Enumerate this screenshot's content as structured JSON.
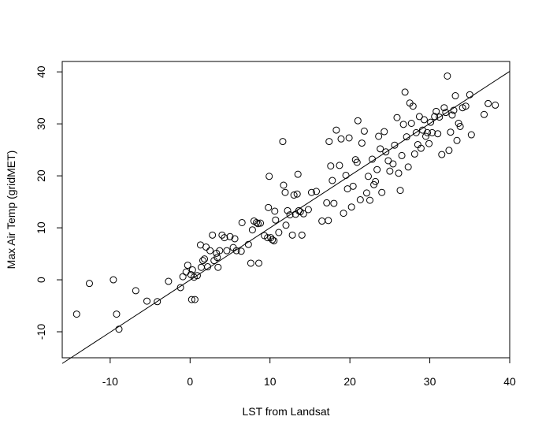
{
  "chart_data": {
    "type": "scatter",
    "title": "",
    "xlabel": "LST from Landsat",
    "ylabel": "Max Air Temp (gridMET)",
    "xlim": [
      -16,
      40
    ],
    "ylim": [
      -15,
      42
    ],
    "xticks": [
      -10,
      0,
      10,
      20,
      30,
      40
    ],
    "yticks": [
      -10,
      0,
      10,
      20,
      30,
      40
    ],
    "grid": false,
    "legend": "none",
    "fit_line": {
      "x": [
        -16,
        40
      ],
      "y": [
        -16.1,
        40.1
      ]
    },
    "points": [
      [
        -14.2,
        -6.6
      ],
      [
        -12.6,
        -0.7
      ],
      [
        -9.6,
        0
      ],
      [
        -9.2,
        -6.6
      ],
      [
        -8.9,
        -9.5
      ],
      [
        -6.8,
        -2.1
      ],
      [
        -5.4,
        -4.1
      ],
      [
        -4.1,
        -4.2
      ],
      [
        -2.7,
        -0.3
      ],
      [
        -1.2,
        -1.5
      ],
      [
        -0.9,
        0.6
      ],
      [
        -0.5,
        1.5
      ],
      [
        -0.3,
        2.8
      ],
      [
        0.1,
        1.0
      ],
      [
        0.2,
        -3.8
      ],
      [
        0.3,
        1.9
      ],
      [
        0.5,
        0.5
      ],
      [
        0.6,
        -3.8
      ],
      [
        0.9,
        0.8
      ],
      [
        1.3,
        6.7
      ],
      [
        1.4,
        2.4
      ],
      [
        1.6,
        3.7
      ],
      [
        1.8,
        4.0
      ],
      [
        2.0,
        6.3
      ],
      [
        2.2,
        2.5
      ],
      [
        2.5,
        5.6
      ],
      [
        2.8,
        8.6
      ],
      [
        3.0,
        3.7
      ],
      [
        3.3,
        5.1
      ],
      [
        3.4,
        4.3
      ],
      [
        3.5,
        2.4
      ],
      [
        3.7,
        5.6
      ],
      [
        4.0,
        8.6
      ],
      [
        4.3,
        8.1
      ],
      [
        4.6,
        5.6
      ],
      [
        5.0,
        8.3
      ],
      [
        5.4,
        6.2
      ],
      [
        5.6,
        7.9
      ],
      [
        5.8,
        5.6
      ],
      [
        6.4,
        5.5
      ],
      [
        6.5,
        11.0
      ],
      [
        7.3,
        6.8
      ],
      [
        7.6,
        3.2
      ],
      [
        7.8,
        9.6
      ],
      [
        8.0,
        11.3
      ],
      [
        8.3,
        11.0
      ],
      [
        8.5,
        10.8
      ],
      [
        8.6,
        3.2
      ],
      [
        8.8,
        10.9
      ],
      [
        9.3,
        8.5
      ],
      [
        9.7,
        8.1
      ],
      [
        9.8,
        13.9
      ],
      [
        9.9,
        19.9
      ],
      [
        10.1,
        8.1
      ],
      [
        10.3,
        7.7
      ],
      [
        10.5,
        7.5
      ],
      [
        10.6,
        13.2
      ],
      [
        10.7,
        11.5
      ],
      [
        11.1,
        9.1
      ],
      [
        11.6,
        26.6
      ],
      [
        11.7,
        18.2
      ],
      [
        11.9,
        16.8
      ],
      [
        12.0,
        10.5
      ],
      [
        12.2,
        13.3
      ],
      [
        12.5,
        12.5
      ],
      [
        12.8,
        8.6
      ],
      [
        13.0,
        16.3
      ],
      [
        13.2,
        12.6
      ],
      [
        13.4,
        16.5
      ],
      [
        13.5,
        20.3
      ],
      [
        13.6,
        13.3
      ],
      [
        13.8,
        13.1
      ],
      [
        14.0,
        8.6
      ],
      [
        14.2,
        12.7
      ],
      [
        14.8,
        13.5
      ],
      [
        15.2,
        16.8
      ],
      [
        15.8,
        17.0
      ],
      [
        16.5,
        11.3
      ],
      [
        17.1,
        14.8
      ],
      [
        17.3,
        11.4
      ],
      [
        17.4,
        26.6
      ],
      [
        17.6,
        21.9
      ],
      [
        17.8,
        19.1
      ],
      [
        18.0,
        14.7
      ],
      [
        18.3,
        28.8
      ],
      [
        18.7,
        22.0
      ],
      [
        18.9,
        27.1
      ],
      [
        19.2,
        12.8
      ],
      [
        19.5,
        20.1
      ],
      [
        19.7,
        17.5
      ],
      [
        19.9,
        27.3
      ],
      [
        20.2,
        14.0
      ],
      [
        20.4,
        18.0
      ],
      [
        20.7,
        23.1
      ],
      [
        20.9,
        22.6
      ],
      [
        21.0,
        30.6
      ],
      [
        21.3,
        15.4
      ],
      [
        21.5,
        26.3
      ],
      [
        21.8,
        28.6
      ],
      [
        22.1,
        16.7
      ],
      [
        22.3,
        19.9
      ],
      [
        22.5,
        15.3
      ],
      [
        22.8,
        23.2
      ],
      [
        23.0,
        18.3
      ],
      [
        23.2,
        18.9
      ],
      [
        23.4,
        21.2
      ],
      [
        23.6,
        27.6
      ],
      [
        23.8,
        25.2
      ],
      [
        24.0,
        16.8
      ],
      [
        24.3,
        28.5
      ],
      [
        24.5,
        24.6
      ],
      [
        24.8,
        22.9
      ],
      [
        25.0,
        20.9
      ],
      [
        25.4,
        22.3
      ],
      [
        25.6,
        25.9
      ],
      [
        25.9,
        31.2
      ],
      [
        26.1,
        20.5
      ],
      [
        26.3,
        17.2
      ],
      [
        26.5,
        23.9
      ],
      [
        26.7,
        29.9
      ],
      [
        26.9,
        36.1
      ],
      [
        27.1,
        27.5
      ],
      [
        27.3,
        21.7
      ],
      [
        27.5,
        34.0
      ],
      [
        27.7,
        30.1
      ],
      [
        27.9,
        33.4
      ],
      [
        28.1,
        24.2
      ],
      [
        28.3,
        28.3
      ],
      [
        28.5,
        26.0
      ],
      [
        28.7,
        31.4
      ],
      [
        28.9,
        25.3
      ],
      [
        29.1,
        28.8
      ],
      [
        29.3,
        30.8
      ],
      [
        29.5,
        27.6
      ],
      [
        29.7,
        28.3
      ],
      [
        29.9,
        26.2
      ],
      [
        30.1,
        30.3
      ],
      [
        30.3,
        28.3
      ],
      [
        30.6,
        31.4
      ],
      [
        30.8,
        32.4
      ],
      [
        31.0,
        28.1
      ],
      [
        31.2,
        31.3
      ],
      [
        31.5,
        24.1
      ],
      [
        31.8,
        33.1
      ],
      [
        32.0,
        32.2
      ],
      [
        32.2,
        39.2
      ],
      [
        32.4,
        24.9
      ],
      [
        32.6,
        28.4
      ],
      [
        32.8,
        31.7
      ],
      [
        33.0,
        32.6
      ],
      [
        33.2,
        35.4
      ],
      [
        33.4,
        26.8
      ],
      [
        33.6,
        30.1
      ],
      [
        33.8,
        29.5
      ],
      [
        34.1,
        33.1
      ],
      [
        34.5,
        33.4
      ],
      [
        35.0,
        35.6
      ],
      [
        35.2,
        27.9
      ],
      [
        36.8,
        31.8
      ],
      [
        37.3,
        33.9
      ],
      [
        38.2,
        33.6
      ]
    ]
  }
}
